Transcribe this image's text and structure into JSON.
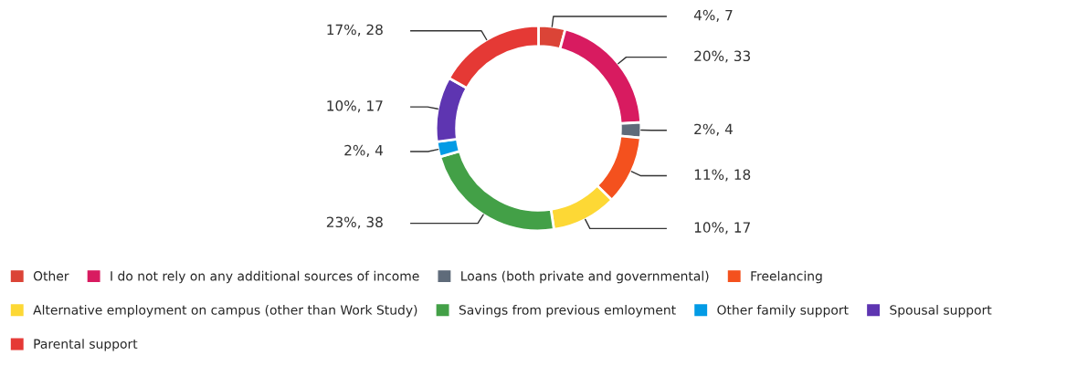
{
  "chart_data": {
    "type": "donut",
    "categories": [
      "Other",
      "I do not rely on any additional sources of income",
      "Loans (both private and governmental)",
      "Freelancing",
      "Alternative employment on campus (other than Work Study)",
      "Savings from previous emloyment",
      "Other family support",
      "Spousal support",
      "Parental support"
    ],
    "values": [
      7,
      33,
      4,
      18,
      17,
      38,
      4,
      17,
      28
    ],
    "colors": [
      "#db4437",
      "#d81b60",
      "#5f6b7a",
      "#f4511e",
      "#fdd835",
      "#43a047",
      "#039be5",
      "#5e35b1",
      "#e53935"
    ],
    "value_labels": [
      "4%, 7",
      "20%, 33",
      "2%, 4",
      "11%, 18",
      "10%, 17",
      "23%, 38",
      "2%, 4",
      "10%, 17",
      "17%, 28"
    ],
    "legend": "bottom"
  }
}
